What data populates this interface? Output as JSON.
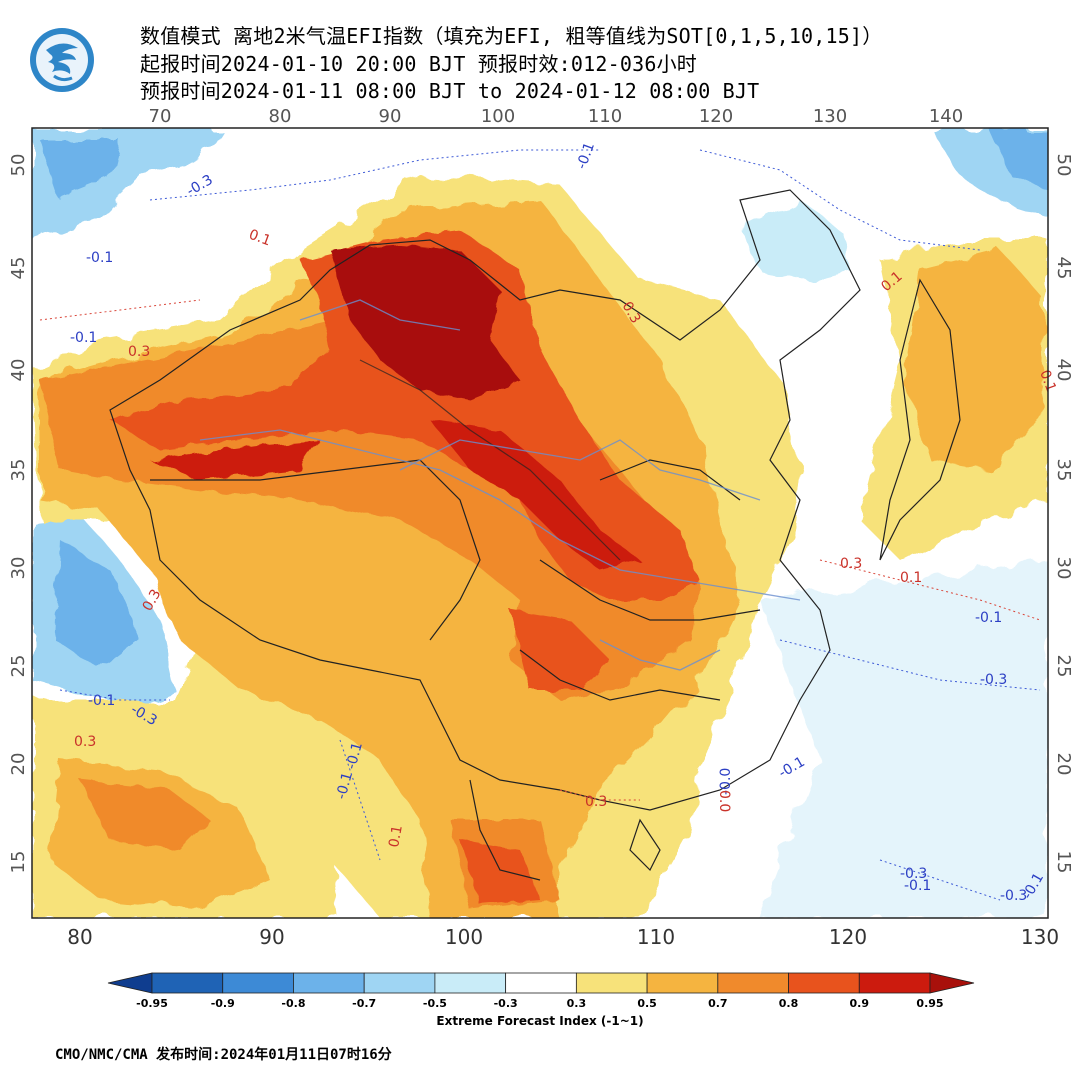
{
  "header": {
    "line1": "数值模式 离地2米气温EFI指数（填充为EFI, 粗等值线为SOT[0,1,5,10,15]）",
    "line2": "起报时间2024-01-10 20:00 BJT 预报时效:012-036小时",
    "line3": "预报时间2024-01-11 08:00 BJT to 2024-01-12 08:00 BJT"
  },
  "axes": {
    "top_ticks": [
      "70",
      "80",
      "90",
      "100",
      "110",
      "120",
      "130",
      "140"
    ],
    "bottom_ticks": [
      "80",
      "90",
      "100",
      "110",
      "120",
      "130"
    ],
    "left_ticks": [
      "50",
      "45",
      "40",
      "35",
      "30",
      "25",
      "20",
      "15"
    ],
    "right_ticks": [
      "50",
      "45",
      "40",
      "35",
      "30",
      "25",
      "20",
      "15"
    ]
  },
  "contour_labels": {
    "blue": [
      "-0.3",
      "-0.1",
      "-0.1",
      "-0.1",
      "-0.1",
      "-0.3",
      "-0.1",
      "-0.3",
      "-0.1",
      "-0.1",
      "-0.3",
      "-0.1",
      "-0.3",
      "-0.1",
      "-0.0",
      "-0.1"
    ],
    "red": [
      "0.1",
      "0.3",
      "0.3",
      "0.1",
      "0.3",
      "0.3",
      "0.1",
      "0.1",
      "0.3",
      "0.1",
      "0.0",
      "0.3"
    ]
  },
  "colorbar": {
    "title": "Extreme Forecast Index (-1~1)",
    "labels": [
      "-0.95",
      "-0.9",
      "-0.8",
      "-0.7",
      "-0.5",
      "-0.3",
      "0.3",
      "0.5",
      "0.7",
      "0.8",
      "0.9",
      "0.95"
    ],
    "colors": [
      "#1f63b5",
      "#3d8ad6",
      "#6cb2ea",
      "#9fd5f3",
      "#c9ecf8",
      "#ffffff",
      "#f7e27a",
      "#f5b440",
      "#f08a2c",
      "#e8531d",
      "#cc1b0e"
    ],
    "low_end_color": "#0f3d8f",
    "high_end_color": "#a8100b"
  },
  "footer": "CMO/NMC/CMA 发布时间:2024年01月11日07时16分",
  "icons": {
    "logo": "cma-logo-icon"
  }
}
